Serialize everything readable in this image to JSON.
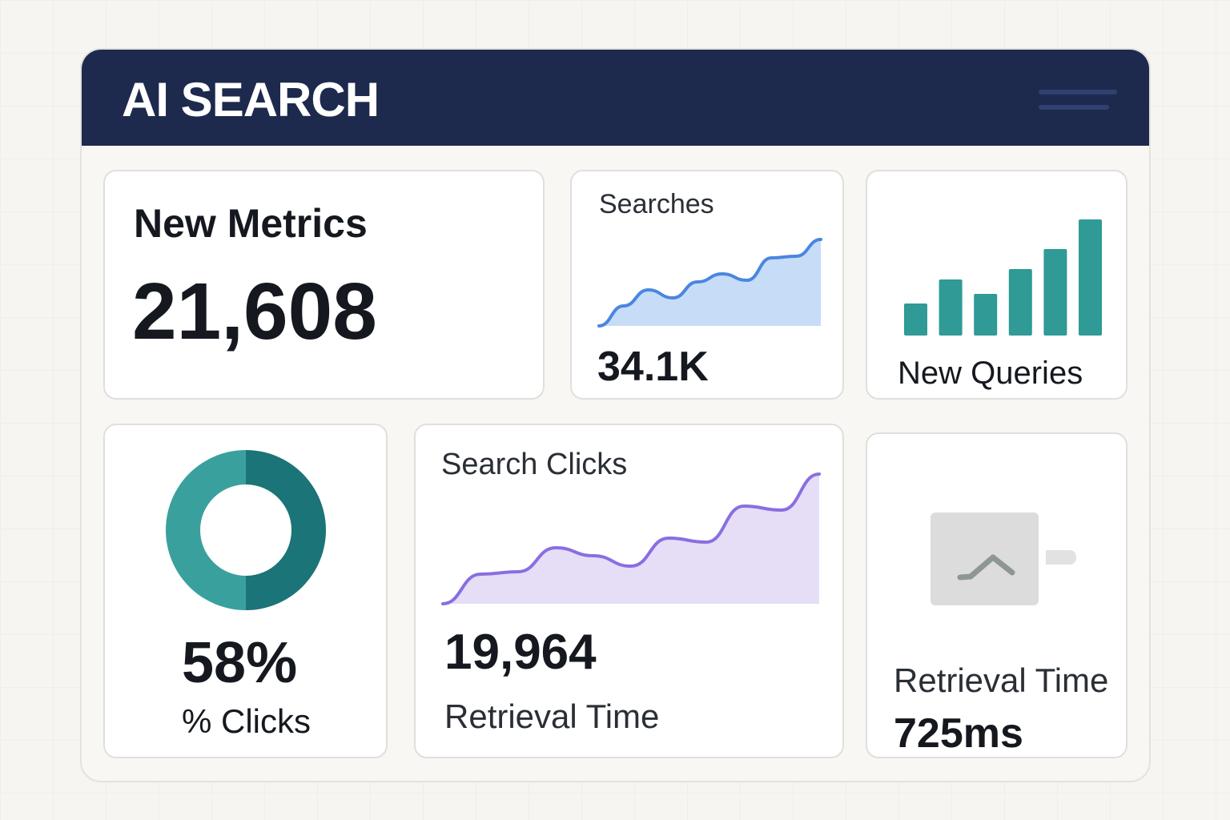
{
  "header": {
    "title": "AI SEARCH",
    "menu_icon": "hamburger-menu-icon"
  },
  "new_metrics": {
    "label": "New Metrics",
    "value": "21,608"
  },
  "searches": {
    "label": "Searches",
    "value": "34.1K",
    "color": "#4a86e0",
    "fill": "#c6dcf7",
    "sparkline": [
      0,
      25,
      45,
      35,
      55,
      65,
      57,
      85,
      87,
      108
    ]
  },
  "new_queries": {
    "label": "New Queries",
    "color": "#2f9a96",
    "bars": [
      40,
      70,
      52,
      83,
      108,
      145
    ]
  },
  "clicks": {
    "value": "58%",
    "label": "% Clicks",
    "percent": 58,
    "color_dark": "#1b7477",
    "color_light": "#3aa09e"
  },
  "search_clicks": {
    "label": "Search Clicks",
    "value": "19,964",
    "sublabel": "Retrieval Time",
    "color": "#8a6ee0",
    "fill": "#e6ddf6",
    "sparkline": [
      0,
      37,
      40,
      70,
      60,
      47,
      82,
      77,
      122,
      117,
      162
    ]
  },
  "retrieval": {
    "label": "Retrieval Time",
    "value": "725ms",
    "icon": "chart-placeholder-icon"
  }
}
